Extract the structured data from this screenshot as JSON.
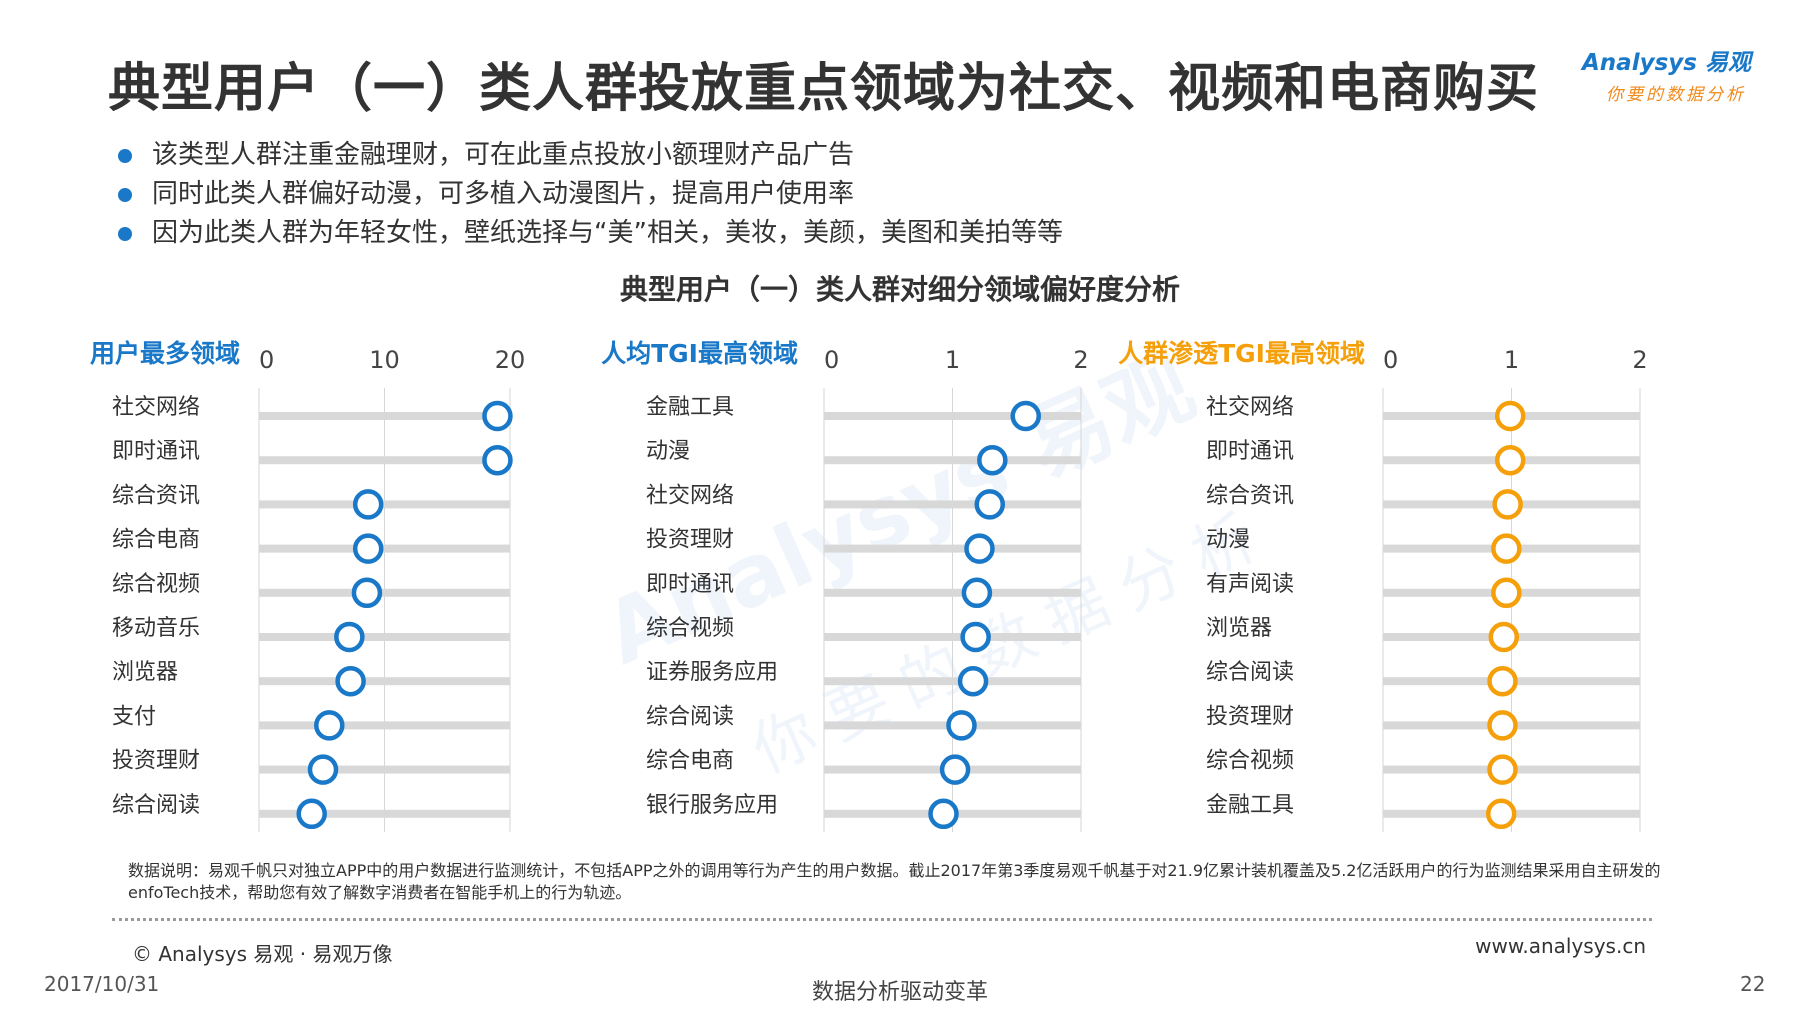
{
  "title": "典型用户（一）类人群投放重点领域为社交、视频和电商购买",
  "logo": {
    "brand": "Analysys 易观",
    "tagline": "你要的数据分析"
  },
  "bullets": [
    "该类型人群注重金融理财，可在此重点投放小额理财产品广告",
    "同时此类人群偏好动漫，可多植入动漫图片，提高用户使用率",
    "因为此类人群为年轻女性，壁纸选择与“美”相关，美妆，美颜，美图和美拍等等"
  ],
  "chart_title": "典型用户（一）类人群对细分领域偏好度分析",
  "chart_data": [
    {
      "type": "scatter",
      "title": "用户最多领域",
      "title_color": "#1a78c8",
      "marker_color": "#1a78c8",
      "xlim": [
        0,
        20
      ],
      "xticks": [
        0,
        10,
        20
      ],
      "categories": [
        "社交网络",
        "即时通讯",
        "综合资讯",
        "综合电商",
        "综合视频",
        "移动音乐",
        "浏览器",
        "支付",
        "投资理财",
        "综合阅读"
      ],
      "values": [
        19,
        19,
        8.7,
        8.7,
        8.6,
        7.2,
        7.3,
        5.6,
        5.1,
        4.2
      ]
    },
    {
      "type": "scatter",
      "title": "人均TGI最高领域",
      "title_color": "#1a78c8",
      "marker_color": "#1a78c8",
      "xlim": [
        0,
        2
      ],
      "xticks": [
        0,
        1,
        2
      ],
      "categories": [
        "金融工具",
        "动漫",
        "社交网络",
        "投资理财",
        "即时通讯",
        "综合视频",
        "证券服务应用",
        "综合阅读",
        "综合电商",
        "银行服务应用"
      ],
      "values": [
        1.57,
        1.31,
        1.29,
        1.21,
        1.19,
        1.18,
        1.16,
        1.07,
        1.02,
        0.93
      ]
    },
    {
      "type": "scatter",
      "title": "人群渗透TGI最高领域",
      "title_color": "#f5a00b",
      "marker_color": "#f5a00b",
      "xlim": [
        0,
        2
      ],
      "xticks": [
        0,
        1,
        2
      ],
      "categories": [
        "社交网络",
        "即时通讯",
        "综合资讯",
        "动漫",
        "有声阅读",
        "浏览器",
        "综合阅读",
        "投资理财",
        "综合视频",
        "金融工具"
      ],
      "values": [
        0.99,
        0.99,
        0.97,
        0.96,
        0.96,
        0.94,
        0.93,
        0.93,
        0.93,
        0.92
      ]
    }
  ],
  "watermark": {
    "brand": "Analysys 易观",
    "tagline": "你要的数据分析"
  },
  "note": "数据说明：易观千帆只对独立APP中的用户数据进行监测统计，不包括APP之外的调用等行为产生的用户数据。截止2017年第3季度易观千帆基于对21.9亿累计装机覆盖及5.2亿活跃用户的行为监测结果采用自主研发的enfoTech技术，帮助您有效了解数字消费者在智能手机上的行为轨迹。",
  "copyright": "© Analysys 易观 · 易观万像",
  "website": "www.analysys.cn",
  "date": "2017/10/31",
  "slogan": "数据分析驱动变革",
  "page_number": "22"
}
